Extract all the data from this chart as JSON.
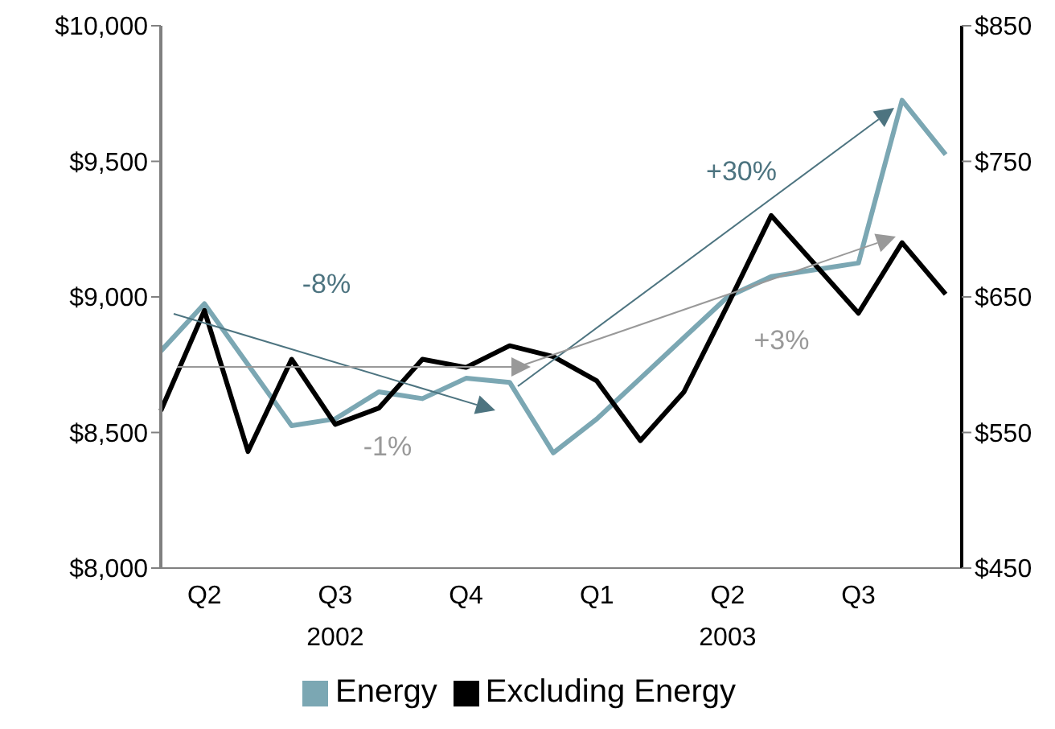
{
  "chart_data": {
    "type": "line",
    "categories": [
      null,
      "Q2",
      null,
      null,
      "Q3\n2002",
      null,
      null,
      "Q4",
      null,
      null,
      "Q1",
      null,
      null,
      "Q2\n2003",
      null,
      null,
      "Q3",
      null,
      null
    ],
    "series": [
      {
        "name": "Energy",
        "color": "#7ba7b3",
        "axis": "y2",
        "values": [
          610,
          645,
          600,
          555,
          560,
          580,
          575,
          590,
          587,
          535,
          560,
          590,
          620,
          650,
          665,
          670,
          675,
          795,
          755
        ]
      },
      {
        "name": "Excluding Energy",
        "color": "#000000",
        "values": [
          8580,
          8950,
          8430,
          8770,
          8530,
          8590,
          8770,
          8740,
          8820,
          8780,
          8690,
          8470,
          8650,
          8970,
          9300,
          9120,
          8940,
          9200,
          9010
        ]
      }
    ],
    "ylim": [
      8000,
      10000
    ],
    "yticks": [
      {
        "value": 8000,
        "label": "$8,000"
      },
      {
        "value": 8500,
        "label": "$8,500"
      },
      {
        "value": 9000,
        "label": "$9,000"
      },
      {
        "value": 9500,
        "label": "$9,500"
      },
      {
        "value": 10000,
        "label": "$10,000"
      }
    ],
    "y2lim": [
      450,
      850
    ],
    "y2ticks": [
      {
        "value": 450,
        "label": "$450"
      },
      {
        "value": 550,
        "label": "$550"
      },
      {
        "value": 650,
        "label": "$650"
      },
      {
        "value": 750,
        "label": "$750"
      },
      {
        "value": 850,
        "label": "$850"
      }
    ],
    "annotations": [
      "-8%",
      "-1%",
      "+30%",
      "+3%"
    ],
    "legend": "bottom",
    "grid": false,
    "marker": "none",
    "line_style": "solid"
  }
}
